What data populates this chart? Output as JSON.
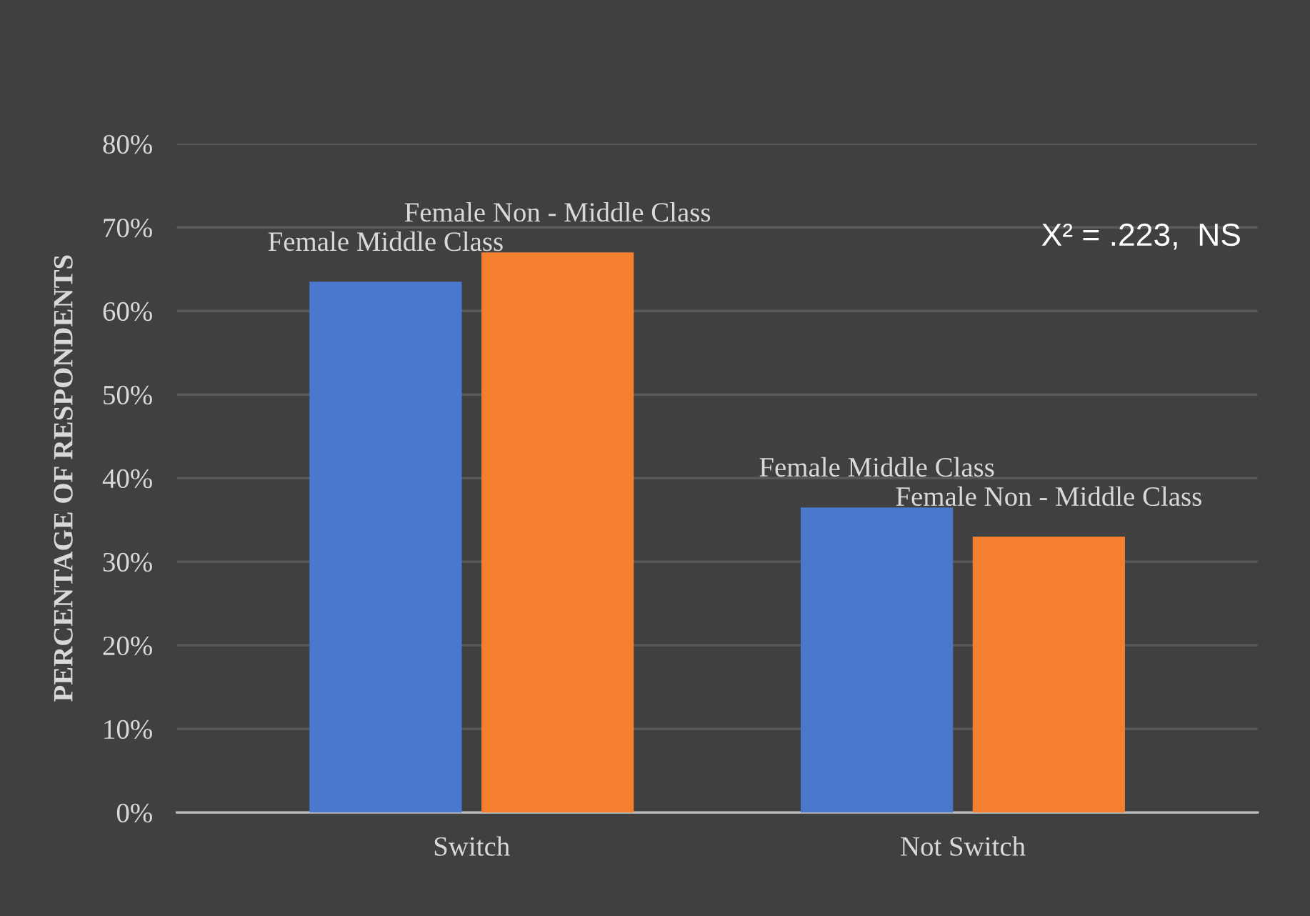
{
  "chart_data": {
    "type": "bar",
    "ylabel": "PERCENTAGE OF RESPONDENTS",
    "categories": [
      "Switch",
      "Not Switch"
    ],
    "series": [
      {
        "name": "Female Middle Class",
        "color": "#4a78cc",
        "values": [
          63.5,
          36.5
        ]
      },
      {
        "name": "Female Non - Middle Class",
        "color": "#f4802f",
        "values": [
          67,
          33
        ]
      }
    ],
    "ylim": [
      0,
      80
    ],
    "yticks": [
      {
        "value": 0,
        "label": "0%"
      },
      {
        "value": 10,
        "label": "10%"
      },
      {
        "value": 20,
        "label": "20%"
      },
      {
        "value": 30,
        "label": "30%"
      },
      {
        "value": 40,
        "label": "40%"
      },
      {
        "value": 50,
        "label": "50%"
      },
      {
        "value": 60,
        "label": "60%"
      },
      {
        "value": 70,
        "label": "70%"
      },
      {
        "value": 80,
        "label": "80%"
      }
    ],
    "grid": "y",
    "legend": false,
    "annotations": [
      "X² = .223,  NS"
    ]
  }
}
